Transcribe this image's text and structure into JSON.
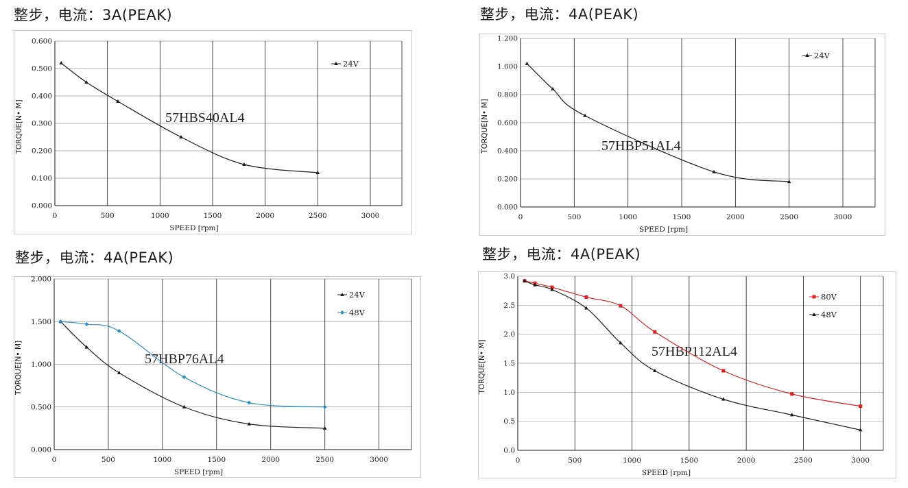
{
  "chart_data": [
    {
      "type": "line",
      "heading": "整步，电流：3A(PEAK)",
      "model_label": "57HBS40AL4",
      "xlabel": "SPEED [rpm]",
      "ylabel": "TORQUE[N• M]",
      "xlim": [
        0,
        3300
      ],
      "ylim": [
        0,
        0.6
      ],
      "xticks": [
        0,
        500,
        1000,
        1500,
        2000,
        2500,
        3000
      ],
      "yticks": [
        0,
        0.1,
        0.2,
        0.3,
        0.4,
        0.5,
        0.6
      ],
      "ytick_labels": [
        "0.000",
        "0.100",
        "0.200",
        "0.300",
        "0.400",
        "0.500",
        "0.600"
      ],
      "grid": true,
      "legend_position": "top-right",
      "series": [
        {
          "name": "24V",
          "color": "#1a1a1a",
          "marker": "triangle",
          "x": [
            60,
            300,
            600,
            1200,
            1800,
            2500
          ],
          "y": [
            0.52,
            0.45,
            0.38,
            0.25,
            0.15,
            0.12
          ]
        }
      ]
    },
    {
      "type": "line",
      "heading": "整步，电流：4A(PEAK)",
      "model_label": "57HBP51AL4",
      "xlabel": "SPEED [rpm]",
      "ylabel": "TORQUE[N• M]",
      "xlim": [
        0,
        3300
      ],
      "ylim": [
        0,
        1.2
      ],
      "xticks": [
        0,
        500,
        1000,
        1500,
        2000,
        2500,
        3000
      ],
      "yticks": [
        0,
        0.2,
        0.4,
        0.6,
        0.8,
        1.0,
        1.2
      ],
      "ytick_labels": [
        "0.000",
        "0.200",
        "0.400",
        "0.600",
        "0.800",
        "1.000",
        "1.200"
      ],
      "grid": true,
      "legend_position": "top-right",
      "series": [
        {
          "name": "24V",
          "color": "#1a1a1a",
          "marker": "triangle",
          "x": [
            60,
            300,
            600,
            1800,
            2500
          ],
          "y": [
            1.02,
            0.84,
            0.65,
            0.25,
            0.18
          ]
        }
      ]
    },
    {
      "type": "line",
      "heading": "整步，电流：4A(PEAK)",
      "model_label": "57HBP76AL4",
      "xlabel": "SPEED [rpm]",
      "ylabel": "TORQUE[N• M]",
      "xlim": [
        0,
        3300
      ],
      "ylim": [
        0,
        2.0
      ],
      "xticks": [
        0,
        500,
        1000,
        1500,
        2000,
        2500,
        3000
      ],
      "yticks": [
        0,
        0.5,
        1.0,
        1.5,
        2.0
      ],
      "ytick_labels": [
        "0.000",
        "0.500",
        "1.000",
        "1.500",
        "2.000"
      ],
      "grid": true,
      "legend_position": "top-right",
      "series": [
        {
          "name": "24V",
          "color": "#1a1a1a",
          "marker": "triangle",
          "x": [
            60,
            300,
            600,
            1200,
            1800,
            2500
          ],
          "y": [
            1.5,
            1.2,
            0.9,
            0.5,
            0.3,
            0.25
          ]
        },
        {
          "name": "48V",
          "color": "#2a8fc4",
          "marker": "diamond",
          "x": [
            60,
            300,
            600,
            1200,
            1800,
            2500
          ],
          "y": [
            1.5,
            1.47,
            1.39,
            0.85,
            0.55,
            0.5
          ]
        }
      ]
    },
    {
      "type": "line",
      "heading": "整步，电流：4A(PEAK)",
      "model_label": "57HBP112AL4",
      "xlabel": "SPEED [rpm]",
      "ylabel": "TORQUE[N• M]",
      "xlim": [
        0,
        3200
      ],
      "ylim": [
        0,
        3.0
      ],
      "xticks": [
        0,
        500,
        1000,
        1500,
        2000,
        2500,
        3000
      ],
      "yticks": [
        0,
        0.5,
        1.0,
        1.5,
        2.0,
        2.5,
        3.0
      ],
      "ytick_labels": [
        "0.0",
        "0.5",
        "1.0",
        "1.5",
        "2.0",
        "2.5",
        "3.0"
      ],
      "grid": true,
      "legend_position": "top-right",
      "series": [
        {
          "name": "80V",
          "color": "#e02020",
          "marker": "square",
          "x": [
            60,
            150,
            300,
            600,
            900,
            1200,
            1800,
            2400,
            3000
          ],
          "y": [
            2.92,
            2.88,
            2.81,
            2.64,
            2.49,
            2.04,
            1.37,
            0.97,
            0.76
          ]
        },
        {
          "name": "48V",
          "color": "#1a1a1a",
          "marker": "triangle",
          "x": [
            60,
            150,
            300,
            600,
            900,
            1200,
            1800,
            2400,
            3000
          ],
          "y": [
            2.92,
            2.85,
            2.77,
            2.45,
            1.85,
            1.37,
            0.88,
            0.61,
            0.35
          ]
        }
      ]
    }
  ]
}
